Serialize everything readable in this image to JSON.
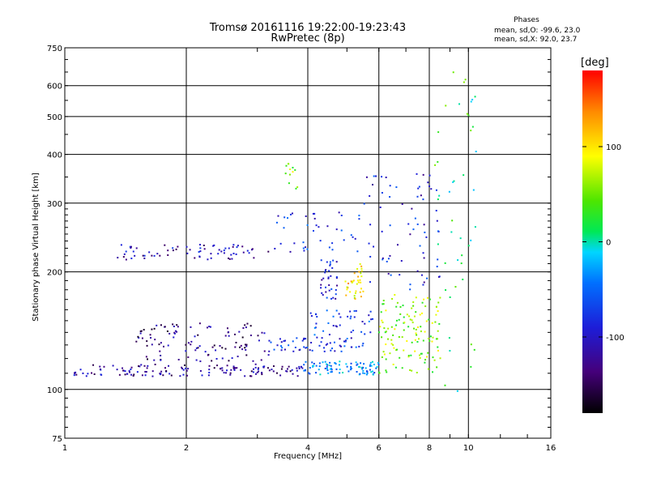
{
  "title": {
    "line1": "Tromsø 20161116 19:22:00-19:23:43",
    "line2": "RwPretec (8p)"
  },
  "stats": {
    "heading": "Phases",
    "line_o": "mean, sd,O: -99.6, 23.0",
    "line_x": "mean, sd,X:  92.0, 23.7"
  },
  "colorbar": {
    "unit": "[deg]",
    "tick_labels": [
      "100",
      "0",
      "-100"
    ],
    "tick_values": [
      100,
      0,
      -100
    ],
    "range": [
      -180,
      180
    ]
  },
  "chart_data": {
    "type": "scatter",
    "xlabel": "Frequency [MHz]",
    "ylabel": "Stationary phase Virtual Height [km]",
    "x_scale": "log",
    "y_scale": "log",
    "xlim": [
      1,
      16
    ],
    "ylim": [
      75,
      750
    ],
    "x_ticks": [
      1,
      2,
      4,
      6,
      8,
      10,
      16
    ],
    "x_tick_labels": [
      "1",
      "2",
      "4",
      "6",
      "8",
      "10",
      "16"
    ],
    "y_ticks": [
      75,
      100,
      200,
      300,
      400,
      500,
      600,
      750
    ],
    "y_tick_labels": [
      "75",
      "100",
      "200",
      "300",
      "400",
      "500",
      "600",
      "750"
    ],
    "grid": true,
    "color_encoding": "phase in degrees",
    "clusters": [
      {
        "x_range": [
          1.05,
          3.9
        ],
        "y_range": [
          108,
          116
        ],
        "phase": -120,
        "count": 140
      },
      {
        "x_range": [
          3.9,
          6.0
        ],
        "y_range": [
          109,
          118
        ],
        "phase": -40,
        "count": 90
      },
      {
        "x_range": [
          6.0,
          8.6
        ],
        "y_range": [
          110,
          175
        ],
        "phase": 60,
        "count": 130
      },
      {
        "x_range": [
          1.5,
          3.2
        ],
        "y_range": [
          118,
          148
        ],
        "phase": -130,
        "count": 110
      },
      {
        "x_range": [
          3.2,
          5.5
        ],
        "y_range": [
          125,
          136
        ],
        "phase": -80,
        "count": 60
      },
      {
        "x_range": [
          4.0,
          5.8
        ],
        "y_range": [
          138,
          160
        ],
        "phase": -70,
        "count": 40
      },
      {
        "x_range": [
          4.3,
          4.75
        ],
        "y_range": [
          170,
          215
        ],
        "phase": -90,
        "count": 35
      },
      {
        "x_range": [
          4.95,
          5.5
        ],
        "y_range": [
          170,
          210
        ],
        "phase": 100,
        "count": 35
      },
      {
        "x_range": [
          1.35,
          3.2
        ],
        "y_range": [
          215,
          235
        ],
        "phase": -110,
        "count": 70
      },
      {
        "x_range": [
          3.3,
          5.5
        ],
        "y_range": [
          225,
          285
        ],
        "phase": -80,
        "count": 40
      },
      {
        "x_range": [
          5.5,
          8.5
        ],
        "y_range": [
          180,
          360
        ],
        "phase": -90,
        "count": 70
      },
      {
        "x_range": [
          3.5,
          3.8
        ],
        "y_range": [
          320,
          380
        ],
        "phase": 60,
        "count": 12
      },
      {
        "x_range": [
          8.2,
          10.5
        ],
        "y_range": [
          85,
          680
        ],
        "phase": 20,
        "count": 45
      }
    ]
  }
}
